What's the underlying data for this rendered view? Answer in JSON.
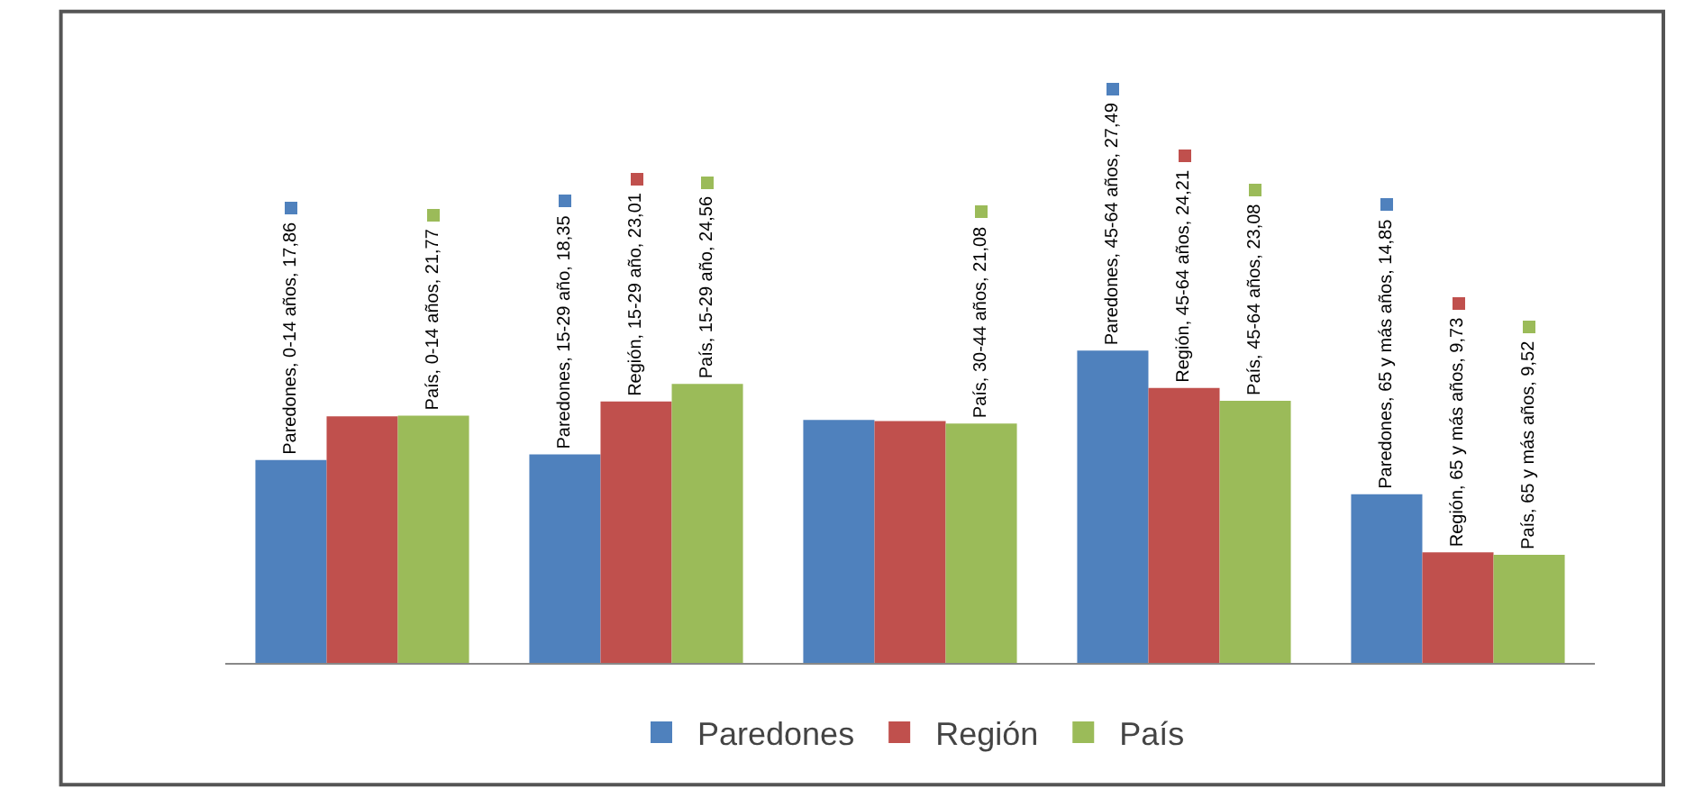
{
  "chart_data": {
    "type": "bar",
    "categories": [
      null,
      null,
      null,
      null,
      null
    ],
    "series": [
      {
        "name": "Paredones",
        "color": "#4f81bd",
        "values": [
          17.86,
          18.35,
          21.4,
          27.49,
          14.85
        ],
        "value_labels": [
          "Paredones, 0-14 años, 17,86",
          "Paredones, 15-29 año, 18,35",
          null,
          "Paredones, 45-64 años, 27,49",
          "Paredones, 65 y más años, 14,85"
        ]
      },
      {
        "name": "Región",
        "color": "#c0504d",
        "values": [
          21.7,
          23.01,
          21.3,
          24.21,
          9.73
        ],
        "value_labels": [
          null,
          "Región, 15-29 año, 23,01",
          null,
          "Región, 45-64 años, 24,21",
          "Región, 65 y más años, 9,73"
        ]
      },
      {
        "name": "País",
        "color": "#9bbb59",
        "values": [
          21.77,
          24.56,
          21.08,
          23.08,
          9.52
        ],
        "value_labels": [
          "País, 0-14 años, 21,77",
          "País, 15-29 año, 24,56",
          "País, 30-44 años, 21,08",
          "País, 45-64 años, 23,08",
          "País, 65 y más años, 9,52"
        ]
      }
    ],
    "tick_labels": false,
    "grid": false,
    "legend": "bottom"
  }
}
